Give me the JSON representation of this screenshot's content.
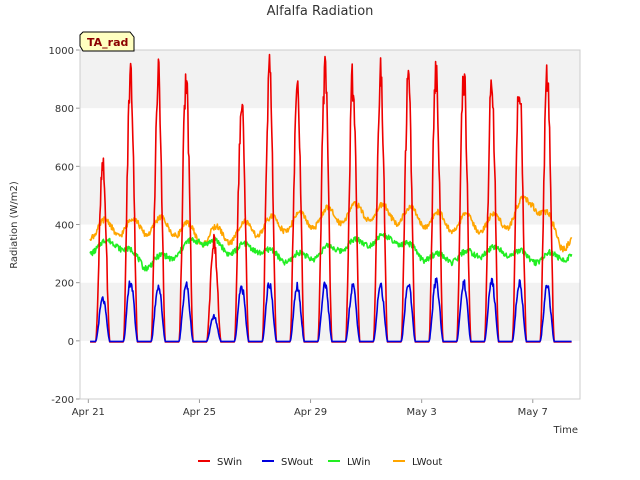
{
  "chart_data": {
    "type": "line",
    "title": "Alfalfa Radiation",
    "xlabel": "Time",
    "ylabel": "Radiation (W/m2)",
    "badge": "TA_rad",
    "ylim": [
      -200,
      1000
    ],
    "yticks": [
      -200,
      0,
      200,
      400,
      600,
      800,
      1000
    ],
    "xlim_days": [
      20.7,
      38.7
    ],
    "xticks": [
      {
        "day": 21,
        "label": "Apr 21"
      },
      {
        "day": 25,
        "label": "Apr 25"
      },
      {
        "day": 29,
        "label": "Apr 29"
      },
      {
        "day": 33,
        "label": "May 3"
      },
      {
        "day": 37,
        "label": "May 7"
      }
    ],
    "grid": "horizontal bands",
    "legend_position": "bottom",
    "daily_peaks": {
      "days": [
        "Apr 21",
        "Apr 22",
        "Apr 23",
        "Apr 24",
        "Apr 25",
        "Apr 26",
        "Apr 27",
        "Apr 28",
        "Apr 29",
        "Apr 30",
        "May 1",
        "May 2",
        "May 3",
        "May 4",
        "May 5",
        "May 6",
        "May 7",
        "May 8"
      ],
      "SWin": [
        640,
        990,
        980,
        950,
        370,
        890,
        990,
        975,
        985,
        970,
        985,
        960,
        990,
        980,
        965,
        970,
        985,
        0
      ],
      "SWout": [
        155,
        220,
        205,
        210,
        90,
        200,
        215,
        205,
        205,
        200,
        205,
        210,
        220,
        215,
        225,
        215,
        200,
        0
      ],
      "LWin": [
        320,
        350,
        270,
        300,
        360,
        320,
        330,
        290,
        300,
        330,
        350,
        360,
        300,
        290,
        310,
        320,
        290,
        300
      ],
      "LWout": [
        400,
        405,
        410,
        410,
        375,
        380,
        405,
        420,
        430,
        450,
        460,
        450,
        440,
        420,
        420,
        425,
        505,
        360
      ]
    },
    "series": [
      {
        "name": "SWin",
        "color": "#ee0000"
      },
      {
        "name": "SWout",
        "color": "#0000dd"
      },
      {
        "name": "LWin",
        "color": "#22ee22"
      },
      {
        "name": "LWout",
        "color": "#ffa500"
      }
    ]
  }
}
